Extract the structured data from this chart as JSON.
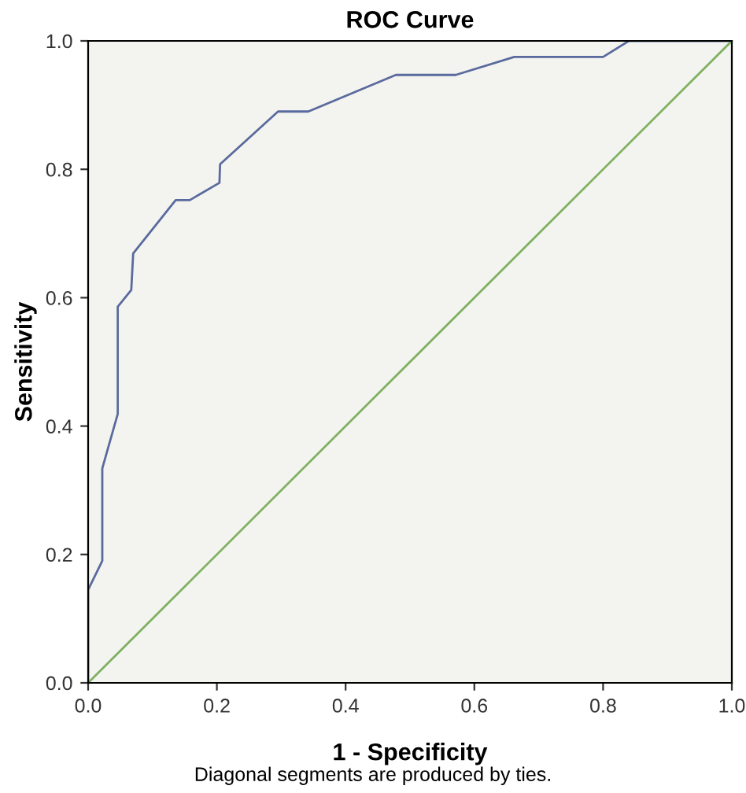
{
  "chart_data": {
    "type": "line",
    "title": "ROC Curve",
    "xlabel": "1 - Specificity",
    "ylabel": "Sensitivity",
    "annotations": [
      "Diagonal segments are produced by ties."
    ],
    "series": [
      {
        "color": "#5a6a9e",
        "x": [
          0,
          0,
          0.022,
          0.022,
          0.046,
          0.046,
          0.067,
          0.07,
          0.136,
          0.158,
          0.204,
          0.205,
          0.295,
          0.342,
          0.478,
          0.571,
          0.662,
          0.8,
          0.84,
          1.0
        ],
        "values": [
          0,
          0.145,
          0.19,
          0.334,
          0.419,
          0.586,
          0.612,
          0.669,
          0.752,
          0.752,
          0.779,
          0.808,
          0.89,
          0.89,
          0.947,
          0.947,
          0.975,
          0.975,
          1.0,
          1.0
        ]
      },
      {
        "color": "#7fb060",
        "x": [
          0,
          1.0
        ],
        "values": [
          0,
          1.0
        ]
      }
    ],
    "xlim": [
      0,
      1.0
    ],
    "ylim": [
      0,
      1.0
    ],
    "xticks": [
      {
        "value": 0,
        "label": "0.0"
      },
      0.2,
      0.4,
      0.6,
      0.8,
      {
        "value": 1.0,
        "label": "1.0"
      }
    ],
    "yticks": [
      {
        "value": 0,
        "label": "0.0"
      },
      0.2,
      0.4,
      0.6,
      0.8,
      {
        "value": 1.0,
        "label": "1.0"
      }
    ],
    "grid": false,
    "legend": false,
    "marker": "none",
    "line_style": "solid"
  }
}
